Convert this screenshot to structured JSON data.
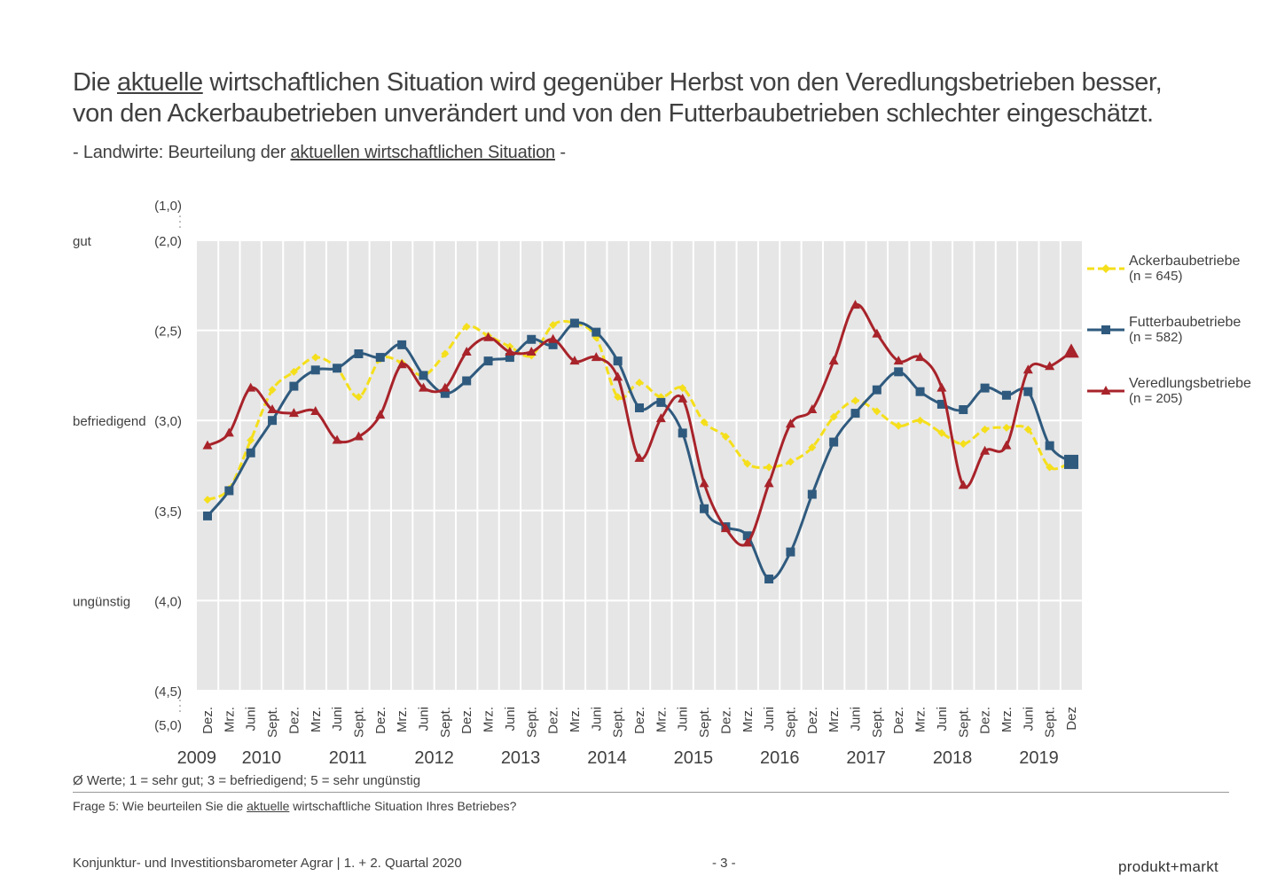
{
  "title": {
    "prefix": "Die ",
    "underlined": "aktuelle",
    "rest": " wirtschaftlichen Situation wird gegenüber Herbst von den Veredlungsbetrieben besser,",
    "line2": "von den Ackerbaubetrieben unverändert und von den Futterbaubetrieben schlechter eingeschätzt."
  },
  "subtitle": {
    "prefix": "- Landwirte: Beurteilung der ",
    "underlined": "aktuellen wirtschaftlichen Situation",
    "suffix": " -"
  },
  "note": "Ø Werte; 1 = sehr gut; 3 = befriedigend; 5 = sehr ungünstig",
  "question": {
    "prefix": "Frage 5: Wie beurteilen Sie die ",
    "underlined": "aktuelle",
    "suffix": " wirtschaftliche Situation Ihres Betriebes?"
  },
  "footer": {
    "left": "Konjunktur- und Investitionsbarometer Agrar | 1. + 2. Quartal 2020",
    "page": "- 3 -",
    "brand": "produkt+markt"
  },
  "chart_data": {
    "type": "line",
    "categories": [
      "Dez.",
      "Mrz.",
      "Juni",
      "Sept.",
      "Dez.",
      "Mrz.",
      "Juni",
      "Sept.",
      "Dez.",
      "Mrz.",
      "Juni",
      "Sept.",
      "Dez.",
      "Mrz.",
      "Juni",
      "Sept.",
      "Dez.",
      "Mrz.",
      "Juni",
      "Sept.",
      "Dez.",
      "Mrz.",
      "Juni",
      "Sept.",
      "Dez.",
      "Mrz.",
      "Juni",
      "Sept.",
      "Dez.",
      "Mrz.",
      "Juni",
      "Sept.",
      "Dez.",
      "Mrz.",
      "Juni",
      "Sept.",
      "Dez.",
      "Mrz.",
      "Juni",
      "Sept.",
      "Dez"
    ],
    "years": [
      "2009",
      "2010",
      "2011",
      "2012",
      "2013",
      "2014",
      "2015",
      "2016",
      "2017",
      "2018",
      "2019"
    ],
    "ylim": [
      2.0,
      4.5
    ],
    "y_reversed": true,
    "yticks": [
      {
        "value": 2.0,
        "label": "(2,0)"
      },
      {
        "value": 2.5,
        "label": "(2,5)"
      },
      {
        "value": 3.0,
        "label": "(3,0)"
      },
      {
        "value": 3.5,
        "label": "(3,5)"
      },
      {
        "value": 4.0,
        "label": "(4,0)"
      },
      {
        "value": 4.5,
        "label": "(4,5)"
      }
    ],
    "y_break_labels": [
      "(1,0)",
      "(5,0)"
    ],
    "rating_labels": [
      {
        "value": 2.0,
        "label": "gut"
      },
      {
        "value": 3.0,
        "label": "befriedigend"
      },
      {
        "value": 4.0,
        "label": "ungünstig"
      }
    ],
    "grid": true,
    "legend": "right",
    "series": [
      {
        "name": "Ackerbaubetriebe",
        "sample": "(n = 645)",
        "color": "#f5df1b",
        "marker": "diamond",
        "dashed": true,
        "values": [
          3.44,
          3.38,
          3.11,
          2.83,
          2.73,
          2.65,
          2.71,
          2.87,
          2.66,
          2.68,
          2.75,
          2.63,
          2.48,
          2.53,
          2.59,
          2.64,
          2.47,
          2.46,
          2.54,
          2.87,
          2.79,
          2.87,
          2.82,
          3.01,
          3.09,
          3.24,
          3.26,
          3.23,
          3.15,
          2.98,
          2.89,
          2.95,
          3.03,
          3.0,
          3.07,
          3.13,
          3.05,
          3.04,
          3.05,
          3.26,
          3.23
        ]
      },
      {
        "name": "Futterbaubetriebe",
        "sample": "(n = 582)",
        "color": "#2f5a7e",
        "marker": "square",
        "dashed": false,
        "values": [
          3.53,
          3.39,
          3.18,
          3.0,
          2.81,
          2.72,
          2.71,
          2.63,
          2.65,
          2.58,
          2.75,
          2.85,
          2.78,
          2.67,
          2.65,
          2.55,
          2.58,
          2.46,
          2.51,
          2.67,
          2.93,
          2.9,
          3.07,
          3.49,
          3.59,
          3.64,
          3.88,
          3.73,
          3.41,
          3.12,
          2.96,
          2.83,
          2.73,
          2.84,
          2.91,
          2.94,
          2.82,
          2.86,
          2.84,
          3.14,
          3.23
        ]
      },
      {
        "name": "Veredlungsbetriebe",
        "sample": "(n = 205)",
        "color": "#a8232a",
        "marker": "triangle",
        "dashed": false,
        "values": [
          3.14,
          3.07,
          2.82,
          2.94,
          2.96,
          2.95,
          3.11,
          3.09,
          2.97,
          2.69,
          2.82,
          2.82,
          2.62,
          2.54,
          2.62,
          2.62,
          2.55,
          2.67,
          2.65,
          2.76,
          3.21,
          2.99,
          2.88,
          3.35,
          3.6,
          3.68,
          3.35,
          3.02,
          2.94,
          2.67,
          2.36,
          2.52,
          2.67,
          2.65,
          2.82,
          3.36,
          3.17,
          3.14,
          2.72,
          2.7,
          2.62
        ]
      }
    ]
  }
}
